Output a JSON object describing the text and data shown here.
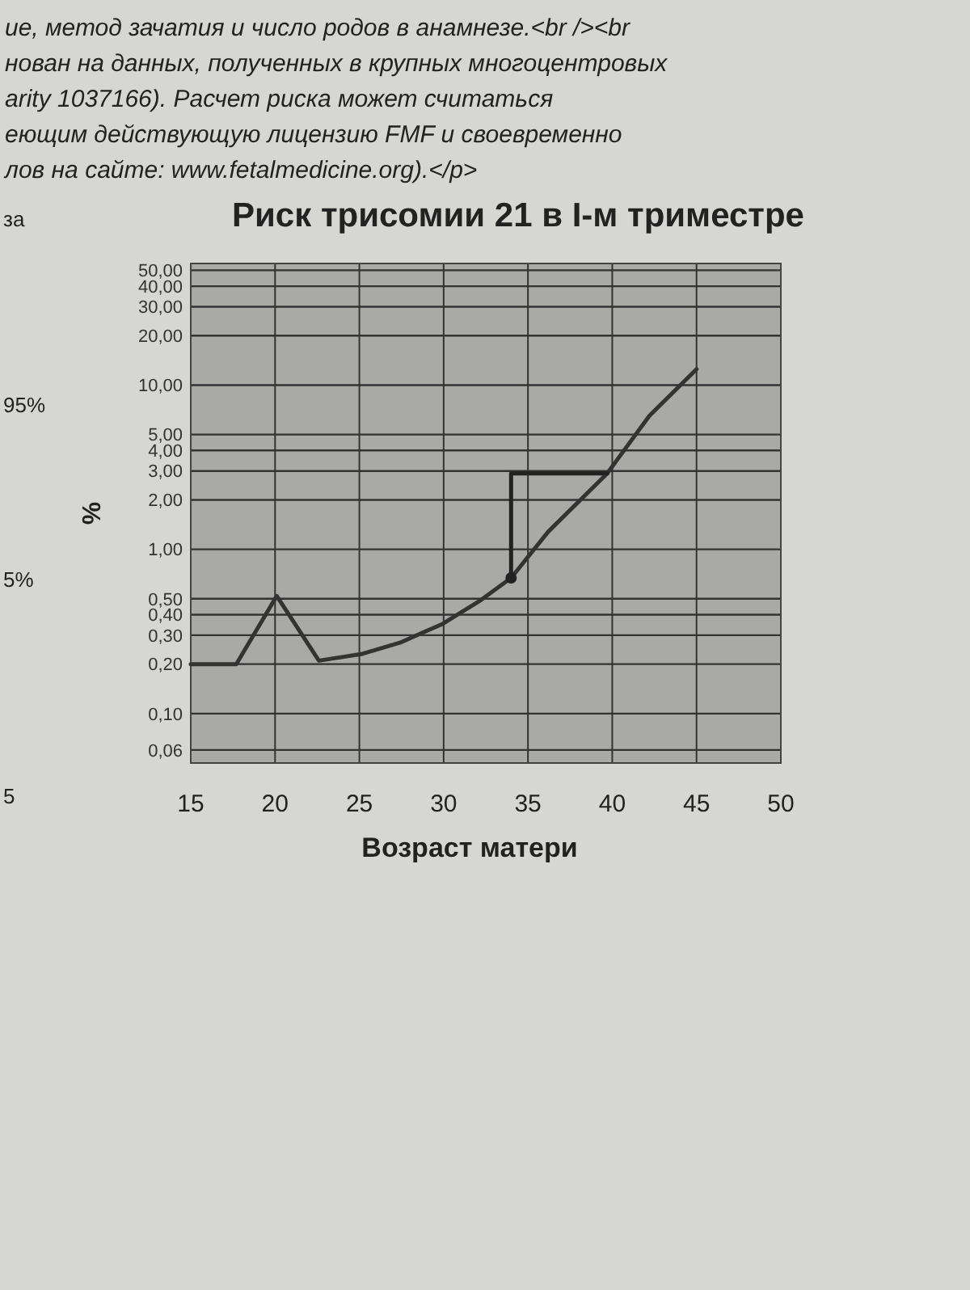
{
  "chart_data": {
    "type": "line",
    "title": "Риск трисомии 21 в I-м триместре",
    "xlabel": "Возраст матери",
    "ylabel": "%",
    "annotations": [
      "ие, метод зачатия и число родов в анамнезе.<br /><br",
      "нован на данных, полученных в крупных многоцентровых",
      "arity 1037166). Расчет риска может считаться",
      "еющим действующую лицензию FMF и своевременно",
      "лов на сайте: www.fetalmedicine.org).</p>",
      "за",
      "95%",
      "5%",
      "5"
    ],
    "log": "y",
    "grid": true,
    "xlim": [
      15,
      50
    ],
    "xticks": [
      15,
      20,
      25,
      30,
      35,
      40,
      45,
      50
    ],
    "ylim": [
      0.05,
      55
    ],
    "yticks": [
      {
        "value": 0.06,
        "label": "0,06"
      },
      {
        "value": 0.1,
        "label": "0,10"
      },
      {
        "value": 0.2,
        "label": "0,20"
      },
      {
        "value": 0.3,
        "label": "0,30"
      },
      {
        "value": 0.4,
        "label": "0,40"
      },
      {
        "value": 0.5,
        "label": "0,50"
      },
      {
        "value": 1,
        "label": "1,00"
      },
      {
        "value": 2,
        "label": "2,00"
      },
      {
        "value": 3,
        "label": "3,00"
      },
      {
        "value": 4,
        "label": "4,00"
      },
      {
        "value": 5,
        "label": "5,00"
      },
      {
        "value": 10,
        "label": "10,00"
      },
      {
        "value": 20,
        "label": "20,00"
      },
      {
        "value": 30,
        "label": "30,00"
      },
      {
        "value": 40,
        "label": "40,00"
      },
      {
        "value": 50,
        "label": "50,00"
      }
    ],
    "series": [
      {
        "color": "#333333",
        "marker": "none",
        "x": [
          15,
          17.7,
          20.1,
          22.6,
          25.1,
          27.4,
          29.9,
          32.2,
          34,
          36.2,
          39.7,
          42.2,
          45
        ],
        "values": [
          0.2,
          0.2,
          0.52,
          0.21,
          0.23,
          0.27,
          0.35,
          0.49,
          0.67,
          1.28,
          2.9,
          6.5,
          12.5
        ]
      },
      {
        "type": "line",
        "color": "#222222",
        "marker": "none",
        "x": [
          34,
          34,
          39.7
        ],
        "values": [
          0.67,
          2.9,
          2.9
        ]
      },
      {
        "type": "scatter",
        "color": "#222222",
        "marker": "circle",
        "x": [
          34
        ],
        "values": [
          0.67
        ]
      }
    ]
  }
}
